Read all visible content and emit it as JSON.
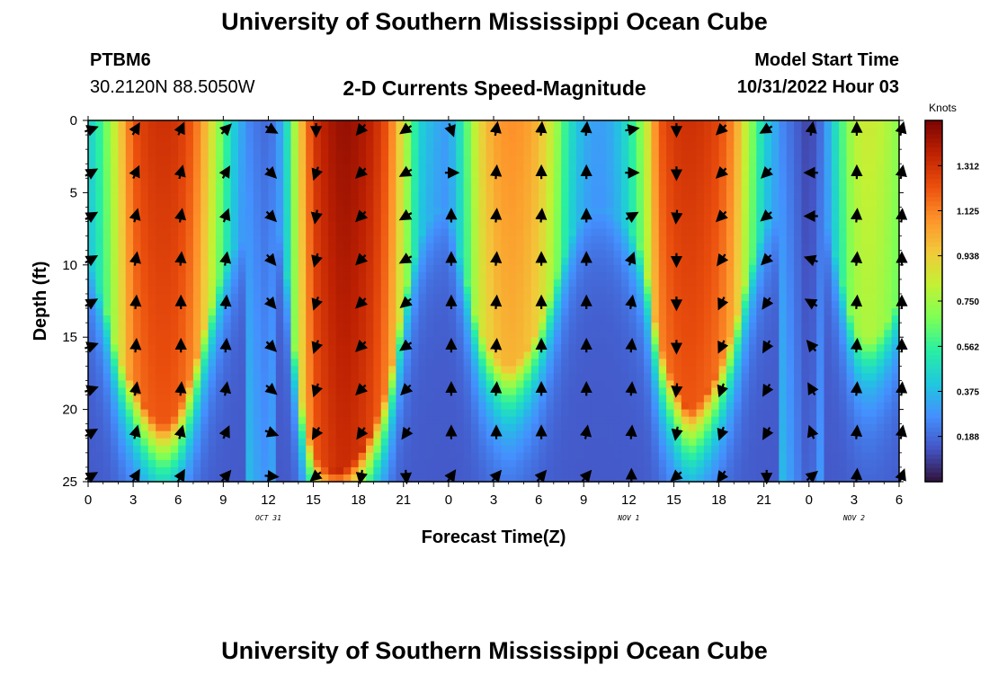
{
  "header": {
    "title": "University of Southern Mississippi Ocean Cube",
    "station_id": "PTBM6",
    "coordinates": "30.2120N  88.5050W",
    "subtitle": "2-D Currents Speed-Magnitude",
    "model_label": "Model Start Time",
    "model_time": "10/31/2022 Hour 03"
  },
  "footer": {
    "title": "University of Southern Mississippi Ocean Cube"
  },
  "chart_data": {
    "type": "heatmap",
    "title": "2-D Currents Speed-Magnitude",
    "xlabel": "Forecast Time(Z)",
    "ylabel": "Depth (ft)",
    "xlim": [
      0,
      54
    ],
    "ylim": [
      25,
      0
    ],
    "x_ticks": [
      0,
      3,
      6,
      9,
      12,
      15,
      18,
      21,
      24,
      27,
      30,
      33,
      36,
      39,
      42,
      45,
      48,
      51,
      54
    ],
    "x_tick_labels": [
      "0",
      "3",
      "6",
      "9",
      "12",
      "15",
      "18",
      "21",
      "0",
      "3",
      "6",
      "9",
      "12",
      "15",
      "18",
      "21",
      "0",
      "3",
      "6"
    ],
    "y_ticks": [
      0,
      5,
      10,
      15,
      20,
      25
    ],
    "y_tick_labels": [
      "0",
      "5",
      "10",
      "15",
      "20",
      "25"
    ],
    "date_labels": [
      {
        "x": 12,
        "label": "OCT 31"
      },
      {
        "x": 36,
        "label": "NOV 1"
      },
      {
        "x": 51,
        "label": "NOV 2"
      }
    ],
    "colorbar": {
      "unit": "Knots",
      "min": 0.0,
      "max": 1.5,
      "ticks": [
        1.312,
        1.125,
        0.938,
        0.75,
        0.562,
        0.375,
        0.188
      ],
      "tick_labels": [
        "1.312",
        "1.125",
        "0.938",
        "0.750",
        "0.562",
        "0.375",
        "0.188"
      ],
      "colors": [
        "#30123b",
        "#4454c4",
        "#4490fe",
        "#1fc8de",
        "#29efa2",
        "#7eff55",
        "#c3f134",
        "#f2c93a",
        "#fe922a",
        "#ea4e0d",
        "#be2102",
        "#7a0403"
      ]
    },
    "speed_profile": {
      "description": "surface speed (knots) at each forecast hour, peak depth of strong flow",
      "times": [
        0,
        1,
        2,
        3,
        4,
        5,
        6,
        7,
        8,
        9,
        10,
        11,
        12,
        13,
        14,
        15,
        16,
        17,
        18,
        19,
        20,
        21,
        22,
        23,
        24,
        25,
        26,
        27,
        28,
        29,
        30,
        31,
        32,
        33,
        34,
        35,
        36,
        37,
        38,
        39,
        40,
        41,
        42,
        43,
        44,
        45,
        46,
        47,
        48,
        49,
        50,
        51,
        52,
        53,
        54
      ],
      "surface": [
        0.42,
        0.6,
        0.9,
        1.22,
        1.3,
        1.32,
        1.3,
        1.2,
        0.95,
        0.62,
        0.35,
        0.25,
        0.2,
        0.35,
        0.9,
        1.3,
        1.4,
        1.45,
        1.42,
        1.35,
        1.2,
        0.85,
        0.45,
        0.35,
        0.3,
        0.55,
        0.9,
        1.05,
        1.1,
        1.08,
        1.0,
        0.8,
        0.5,
        0.35,
        0.3,
        0.35,
        0.5,
        0.75,
        1.2,
        1.3,
        1.32,
        1.3,
        1.25,
        1.1,
        0.75,
        0.45,
        0.3,
        0.2,
        0.1,
        0.25,
        0.55,
        0.8,
        0.85,
        0.8,
        0.7
      ],
      "decay_depth": [
        9,
        12,
        16,
        18,
        20,
        21,
        20,
        17,
        13,
        10,
        8,
        7,
        6,
        8,
        18,
        23,
        24,
        24,
        23,
        21,
        18,
        12,
        8,
        6,
        6,
        10,
        14,
        16,
        17,
        16,
        14,
        11,
        8,
        6,
        6,
        6,
        7,
        9,
        15,
        18,
        20,
        19,
        17,
        14,
        10,
        7,
        6,
        5,
        5,
        6,
        10,
        14,
        15,
        14,
        12
      ]
    },
    "vectors": {
      "description": "current direction arrows in degrees clockwise from up, per time column and depth row",
      "times": [
        0,
        3,
        6,
        9,
        12,
        15,
        18,
        21,
        24,
        27,
        30,
        33,
        36,
        39,
        42,
        45,
        48,
        51,
        54
      ],
      "depths": [
        0,
        3,
        6,
        9,
        12,
        15,
        18,
        21,
        24
      ],
      "directions": [
        [
          70,
          60,
          60,
          60,
          60,
          70,
          70,
          60,
          60
        ],
        [
          30,
          25,
          15,
          10,
          5,
          5,
          10,
          15,
          30
        ],
        [
          25,
          15,
          10,
          5,
          0,
          0,
          5,
          15,
          30
        ],
        [
          45,
          30,
          20,
          10,
          5,
          5,
          10,
          25,
          40
        ],
        [
          120,
          135,
          135,
          140,
          140,
          135,
          130,
          110,
          95
        ],
        [
          180,
          200,
          190,
          195,
          200,
          200,
          200,
          210,
          230
        ],
        [
          220,
          225,
          225,
          225,
          225,
          225,
          225,
          215,
          190
        ],
        [
          235,
          240,
          240,
          240,
          230,
          235,
          225,
          215,
          175
        ],
        [
          160,
          90,
          0,
          0,
          0,
          0,
          0,
          0,
          35
        ],
        [
          10,
          5,
          5,
          5,
          5,
          5,
          5,
          0,
          40
        ],
        [
          5,
          0,
          5,
          0,
          0,
          0,
          0,
          0,
          40
        ],
        [
          5,
          0,
          0,
          0,
          0,
          0,
          0,
          10,
          40
        ],
        [
          80,
          90,
          60,
          20,
          10,
          5,
          5,
          5,
          0
        ],
        [
          180,
          180,
          185,
          180,
          180,
          180,
          185,
          190,
          230
        ],
        [
          225,
          225,
          225,
          215,
          205,
          205,
          200,
          200,
          215
        ],
        [
          240,
          225,
          230,
          225,
          215,
          210,
          210,
          210,
          180
        ],
        [
          10,
          270,
          270,
          290,
          300,
          320,
          330,
          340,
          50
        ],
        [
          0,
          0,
          5,
          5,
          5,
          5,
          5,
          5,
          5
        ],
        [
          15,
          10,
          5,
          0,
          0,
          0,
          5,
          10,
          20
        ]
      ]
    }
  }
}
